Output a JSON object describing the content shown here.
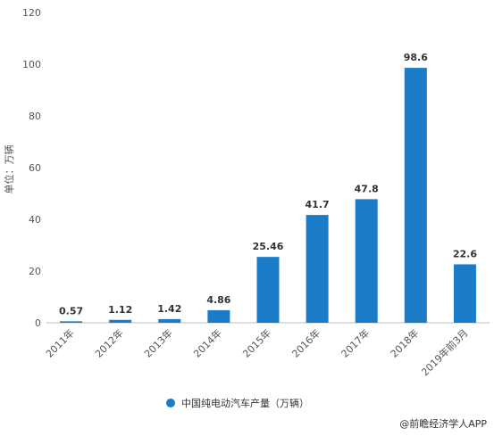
{
  "chart_data": {
    "type": "bar",
    "categories": [
      "2011年",
      "2012年",
      "2013年",
      "2014年",
      "2015年",
      "2016年",
      "2017年",
      "2018年",
      "2019年前3月"
    ],
    "series": [
      {
        "name": "中国纯电动汽车产量（万辆）",
        "values": [
          0.57,
          1.12,
          1.42,
          4.86,
          25.46,
          41.7,
          47.8,
          98.6,
          22.6
        ],
        "labels": [
          "0.57",
          "1.12",
          "1.42",
          "4.86",
          "25.46",
          "41.7",
          "47.8",
          "98.6",
          "22.6"
        ],
        "color": "#1a7cc7"
      }
    ],
    "ylabel": "单位：万辆",
    "xlabel": "",
    "ylim": [
      0,
      120
    ],
    "yticks": [
      0,
      20,
      40,
      60,
      80,
      100,
      120
    ],
    "grid": false,
    "legend_position": "bottom"
  },
  "credit": "@前瞻经济学人APP"
}
